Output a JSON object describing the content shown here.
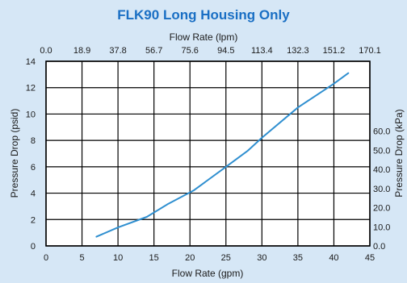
{
  "chart_data": {
    "type": "line",
    "title": "FLK90 Long Housing Only",
    "title_color": "#1a6fc4",
    "line_color": "#2f8fd0",
    "grid": true,
    "xlabel": "Flow Rate (gpm)",
    "ylabel": "Pressure Drop (psid)",
    "x2label": "Flow Rate (lpm)",
    "y2label": "Pressure Drop (kPa)",
    "xlim": [
      0,
      45
    ],
    "ylim": [
      0,
      14
    ],
    "x_ticks": [
      "0",
      "5",
      "10",
      "15",
      "20",
      "25",
      "30",
      "35",
      "40",
      "45"
    ],
    "y_ticks": [
      "0",
      "2",
      "4",
      "6",
      "8",
      "10",
      "12",
      "14"
    ],
    "x2_ticks": [
      "0.0",
      "18.9",
      "37.8",
      "56.7",
      "75.6",
      "94.5",
      "113.4",
      "132.3",
      "151.2",
      "170.1"
    ],
    "y2_ticks": [
      {
        "label": "0.0",
        "value": 0.0
      },
      {
        "label": "10.0",
        "value": 1.45
      },
      {
        "label": "20.0",
        "value": 2.9
      },
      {
        "label": "30.0",
        "value": 4.35
      },
      {
        "label": "40.0",
        "value": 5.8
      },
      {
        "label": "50.0",
        "value": 7.25
      },
      {
        "label": "60.0",
        "value": 8.7
      }
    ],
    "series": [
      {
        "x": [
          7,
          10,
          14,
          17,
          20.5,
          25,
          28,
          30,
          35,
          40,
          42
        ],
        "y": [
          0.7,
          1.4,
          2.2,
          3.2,
          4.2,
          6.0,
          7.2,
          8.2,
          10.5,
          12.3,
          13.1
        ]
      }
    ]
  }
}
